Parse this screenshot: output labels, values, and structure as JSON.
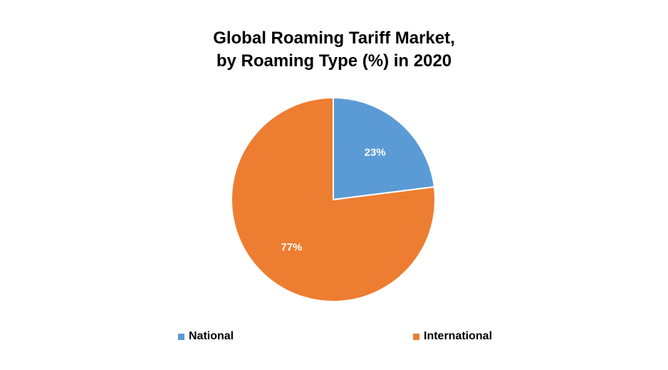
{
  "chart_data": {
    "type": "pie",
    "title_lines": [
      "Global Roaming Tariff Market,",
      "by Roaming Type (%) in 2020"
    ],
    "categories": [
      "National",
      "International"
    ],
    "values": [
      23,
      77
    ],
    "labels": [
      "23%",
      "77%"
    ],
    "colors": [
      "#5b9bd5",
      "#ed7d31"
    ],
    "legend_position": "bottom"
  }
}
